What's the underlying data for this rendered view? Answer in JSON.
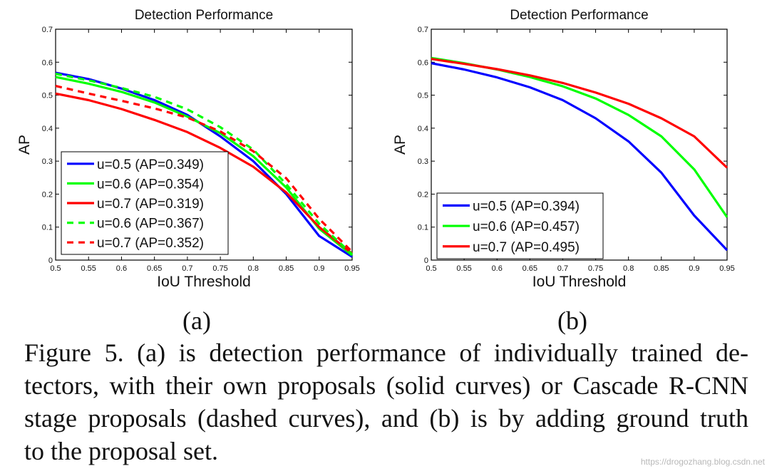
{
  "chart_data": [
    {
      "type": "line",
      "title": "Detection Performance",
      "xlabel": "IoU Threshold",
      "ylabel": "AP",
      "xlim": [
        0.5,
        0.95
      ],
      "ylim": [
        0,
        0.7
      ],
      "xticks": [
        "0.5",
        "0.55",
        "0.6",
        "0.65",
        "0.7",
        "0.75",
        "0.8",
        "0.85",
        "0.9",
        "0.95"
      ],
      "yticks": [
        "0",
        "0.1",
        "0.2",
        "0.3",
        "0.4",
        "0.5",
        "0.6",
        "0.7"
      ],
      "x": [
        0.5,
        0.55,
        0.6,
        0.65,
        0.7,
        0.75,
        0.8,
        0.85,
        0.9,
        0.95
      ],
      "legend_position": "bottom-left",
      "series": [
        {
          "name": "u=0.5 (AP=0.349)",
          "color": "#0000ff",
          "style": "solid",
          "values": [
            0.568,
            0.549,
            0.52,
            0.485,
            0.44,
            0.375,
            0.3,
            0.2,
            0.073,
            0.01
          ]
        },
        {
          "name": "u=0.6 (AP=0.354)",
          "color": "#00ff00",
          "style": "solid",
          "values": [
            0.555,
            0.535,
            0.51,
            0.478,
            0.435,
            0.385,
            0.315,
            0.22,
            0.095,
            0.015
          ]
        },
        {
          "name": "u=0.7 (AP=0.319)",
          "color": "#ff0000",
          "style": "solid",
          "values": [
            0.505,
            0.485,
            0.458,
            0.425,
            0.388,
            0.34,
            0.283,
            0.205,
            0.1,
            0.02
          ]
        },
        {
          "name": "u=0.6 (AP=0.367)",
          "color": "#00ff00",
          "style": "dashed",
          "values": [
            0.565,
            0.545,
            0.522,
            0.495,
            0.457,
            0.403,
            0.335,
            0.23,
            0.11,
            0.018
          ]
        },
        {
          "name": "u=0.7 (AP=0.352)",
          "color": "#ff0000",
          "style": "dashed",
          "values": [
            0.528,
            0.505,
            0.483,
            0.46,
            0.432,
            0.39,
            0.33,
            0.248,
            0.125,
            0.025
          ]
        }
      ],
      "panel_label": "(a)"
    },
    {
      "type": "line",
      "title": "Detection Performance",
      "xlabel": "IoU Threshold",
      "ylabel": "AP",
      "xlim": [
        0.5,
        0.95
      ],
      "ylim": [
        0,
        0.7
      ],
      "xticks": [
        "0.5",
        "0.55",
        "0.6",
        "0.65",
        "0.7",
        "0.75",
        "0.8",
        "0.85",
        "0.9",
        "0.95"
      ],
      "yticks": [
        "0",
        "0.1",
        "0.2",
        "0.3",
        "0.4",
        "0.5",
        "0.6",
        "0.7"
      ],
      "x": [
        0.5,
        0.55,
        0.6,
        0.65,
        0.7,
        0.75,
        0.8,
        0.85,
        0.9,
        0.95
      ],
      "legend_position": "bottom-left",
      "series": [
        {
          "name": "u=0.5 (AP=0.394)",
          "color": "#0000ff",
          "style": "solid",
          "values": [
            0.597,
            0.578,
            0.554,
            0.524,
            0.485,
            0.43,
            0.36,
            0.265,
            0.135,
            0.03
          ]
        },
        {
          "name": "u=0.6 (AP=0.457)",
          "color": "#00ff00",
          "style": "solid",
          "values": [
            0.613,
            0.597,
            0.578,
            0.555,
            0.527,
            0.49,
            0.44,
            0.375,
            0.275,
            0.13
          ]
        },
        {
          "name": "u=0.7 (AP=0.495)",
          "color": "#ff0000",
          "style": "solid",
          "values": [
            0.61,
            0.595,
            0.579,
            0.56,
            0.537,
            0.508,
            0.474,
            0.43,
            0.375,
            0.28
          ]
        }
      ],
      "panel_label": "(b)"
    }
  ],
  "caption": {
    "lines": [
      "Figure 5. (a) is detection performance of individually trained de-",
      "tectors, with their own proposals (solid curves) or Cascade R-CNN",
      "stage proposals (dashed curves), and (b) is by adding ground truth",
      "to the proposal set."
    ]
  },
  "watermark": "https://drogozhang.blog.csdn.net"
}
